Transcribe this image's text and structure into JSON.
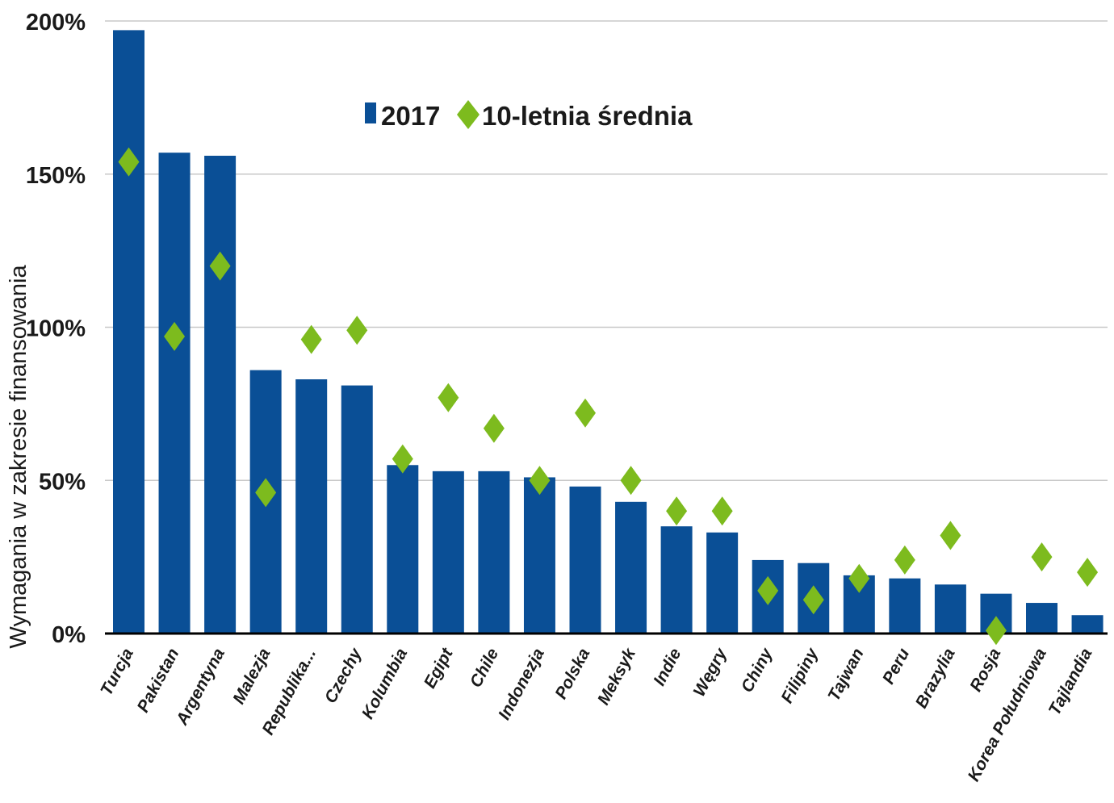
{
  "chart_data": {
    "type": "bar",
    "ylabel": "Wymagania w zakresie finansowania",
    "ylim": [
      0,
      200
    ],
    "yticks": [
      "0%",
      "50%",
      "100%",
      "150%",
      "200%"
    ],
    "ytick_values": [
      0,
      50,
      100,
      150,
      200
    ],
    "grid": true,
    "legend_position": "top-center",
    "categories": [
      "Turcja",
      "Pakistan",
      "Argentyna",
      "Malezja",
      "Republika...",
      "Czechy",
      "Kolumbia",
      "Egipt",
      "Chile",
      "Indonezja",
      "Polska",
      "Meksyk",
      "Indie",
      "Węgry",
      "Chiny",
      "Filipiny",
      "Tajwan",
      "Peru",
      "Brazylia",
      "Rosja",
      "Korea Południowa",
      "Tajlandia"
    ],
    "series": [
      {
        "name": "2017",
        "kind": "bar",
        "color": "#0a4f96",
        "values": [
          197,
          157,
          156,
          86,
          83,
          81,
          55,
          53,
          53,
          51,
          48,
          43,
          35,
          33,
          24,
          23,
          19,
          18,
          16,
          13,
          10,
          6
        ]
      },
      {
        "name": "10-letnia średnia",
        "kind": "marker",
        "marker": "diamond",
        "color": "#7dbb1e",
        "values": [
          154,
          97,
          120,
          46,
          96,
          99,
          57,
          77,
          67,
          50,
          72,
          50,
          40,
          40,
          14,
          11,
          18,
          24,
          32,
          1,
          25,
          20
        ]
      }
    ]
  }
}
